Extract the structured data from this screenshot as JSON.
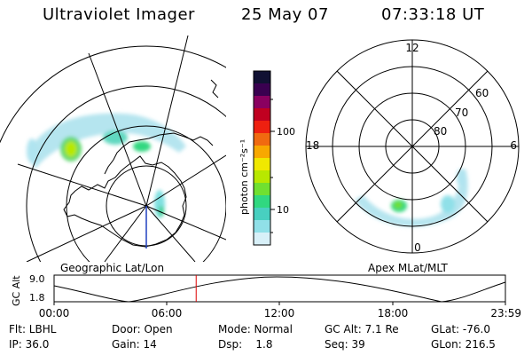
{
  "header": {
    "instrument": "Ultraviolet Imager",
    "date": "25 May 07",
    "time": "07:33:18 UT"
  },
  "left_map": {
    "caption": "Geographic Lat/Lon"
  },
  "right_map": {
    "caption": "Apex MLat/MLT",
    "mlt_labels": {
      "top": "12",
      "left": "18",
      "right": "6",
      "bottom": "0"
    },
    "lat_labels": [
      "60",
      "70",
      "80"
    ]
  },
  "colorbar": {
    "unit_label": "photon cm⁻²s⁻¹",
    "ticks": [
      "100",
      "10"
    ],
    "colors": [
      "#111133",
      "#3a0050",
      "#8a0060",
      "#c00020",
      "#ee2010",
      "#f06a10",
      "#f8a800",
      "#f0e800",
      "#b8e800",
      "#70e030",
      "#30d880",
      "#48d0c0",
      "#90e0e8",
      "#d8f0f8"
    ]
  },
  "altitude_plot": {
    "ylabel": "GC Alt",
    "yticks": [
      "9.0",
      "1.8"
    ],
    "xticks": [
      "00:00",
      "06:00",
      "12:00",
      "18:00",
      "23:59"
    ],
    "current_time_marker": "07:33",
    "marker_color": "#dd0000"
  },
  "footer": {
    "filter": "Flt: LBHL",
    "door": "Door: Open",
    "mode": "Mode: Normal",
    "gc_alt": "GC Alt: 7.1 Re",
    "glat": "GLat: -76.0",
    "ip": "IP: 36.0",
    "gain": "Gain: 14",
    "dsp": "Dsp:    1.8",
    "seq": "Seq: 39",
    "glon": "GLon: 216.5"
  }
}
